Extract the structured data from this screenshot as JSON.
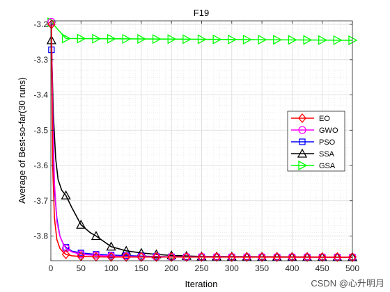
{
  "chart_data": {
    "type": "line",
    "title": "F19",
    "xlabel": "Iteration",
    "ylabel": "Average of Best-so-far(30 runs)",
    "xlim": [
      0,
      500
    ],
    "ylim": [
      -3.87,
      -3.19
    ],
    "xticks": [
      0,
      50,
      100,
      150,
      200,
      250,
      300,
      350,
      400,
      450,
      500
    ],
    "xtick_labels": [
      "0",
      "50",
      "100",
      "150",
      "200",
      "250",
      "300",
      "350",
      "400",
      "450",
      "500"
    ],
    "yticks": [
      -3.8,
      -3.7,
      -3.6,
      -3.5,
      -3.4,
      -3.3,
      -3.2
    ],
    "ytick_labels": [
      "-3.8",
      "-3.7",
      "-3.6",
      "-3.5",
      "-3.4",
      "-3.3",
      "-3.2"
    ],
    "grid": true,
    "legend_position": "center-right",
    "marker_every": 25,
    "series": [
      {
        "name": "EO",
        "color": "#ff0000",
        "marker": "diamond",
        "x": [
          1,
          3,
          6,
          10,
          15,
          20,
          25,
          35,
          50,
          75,
          100,
          500
        ],
        "y": [
          -3.2,
          -3.6,
          -3.75,
          -3.81,
          -3.835,
          -3.845,
          -3.852,
          -3.856,
          -3.858,
          -3.859,
          -3.8595,
          -3.86
        ]
      },
      {
        "name": "GWO",
        "color": "#ff00ff",
        "marker": "circle",
        "x": [
          1,
          3,
          6,
          10,
          15,
          20,
          25,
          35,
          50,
          75,
          100,
          150,
          500
        ],
        "y": [
          -3.193,
          -3.45,
          -3.65,
          -3.76,
          -3.8,
          -3.82,
          -3.835,
          -3.845,
          -3.852,
          -3.855,
          -3.857,
          -3.859,
          -3.86
        ]
      },
      {
        "name": "PSO",
        "color": "#0000ff",
        "marker": "square",
        "x": [
          1,
          3,
          6,
          10,
          15,
          20,
          25,
          35,
          50,
          75,
          100,
          150,
          200,
          500
        ],
        "y": [
          -3.272,
          -3.5,
          -3.67,
          -3.75,
          -3.8,
          -3.82,
          -3.832,
          -3.843,
          -3.848,
          -3.852,
          -3.854,
          -3.857,
          -3.859,
          -3.86
        ]
      },
      {
        "name": "SSA",
        "color": "#000000",
        "marker": "triangle-up",
        "x": [
          1,
          4,
          8,
          12,
          18,
          25,
          35,
          50,
          65,
          75,
          100,
          125,
          150,
          175,
          200,
          250,
          500
        ],
        "y": [
          -3.245,
          -3.45,
          -3.58,
          -3.64,
          -3.67,
          -3.685,
          -3.72,
          -3.768,
          -3.79,
          -3.8,
          -3.83,
          -3.842,
          -3.848,
          -3.852,
          -3.855,
          -3.858,
          -3.86
        ]
      },
      {
        "name": "GSA",
        "color": "#00ff00",
        "marker": "triangle-right",
        "x": [
          1,
          25,
          500
        ],
        "y": [
          -3.194,
          -3.24,
          -3.245
        ]
      }
    ]
  },
  "watermark": "CSDN @心升明月"
}
